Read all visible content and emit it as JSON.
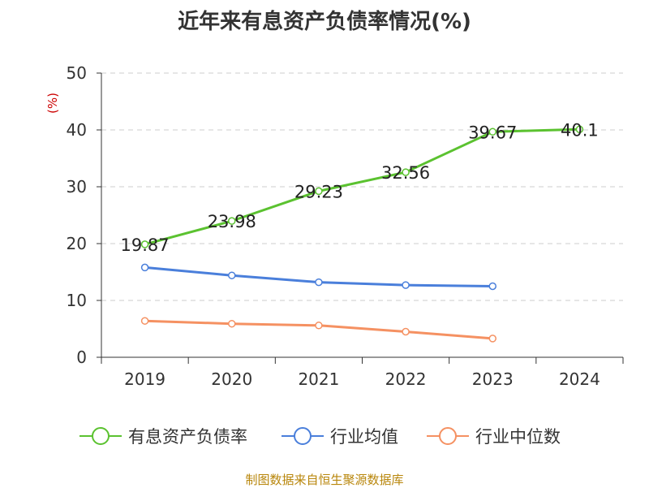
{
  "chart_data": {
    "type": "line",
    "title": "近年来有息资产负债率情况(%)",
    "ylabel": "(%)",
    "categories": [
      "2019",
      "2020",
      "2021",
      "2022",
      "2023",
      "2024"
    ],
    "ylim": [
      0,
      50
    ],
    "yticks": [
      0,
      10,
      20,
      30,
      40,
      50
    ],
    "grid": true,
    "legend_position": "bottom",
    "series": [
      {
        "name": "有息资产负债率",
        "color": "#5bc230",
        "values": [
          19.87,
          23.98,
          29.23,
          32.56,
          39.67,
          40.1
        ],
        "labels": [
          "19.87",
          "23.98",
          "29.23",
          "32.56",
          "39.67",
          "40.1"
        ]
      },
      {
        "name": "行业均值",
        "color": "#4a7fdb",
        "values": [
          15.8,
          14.4,
          13.2,
          12.7,
          12.5,
          null
        ]
      },
      {
        "name": "行业中位数",
        "color": "#f59162",
        "values": [
          6.4,
          5.9,
          5.6,
          4.5,
          3.3,
          null
        ]
      }
    ]
  },
  "source": "制图数据来自恒生聚源数据库"
}
